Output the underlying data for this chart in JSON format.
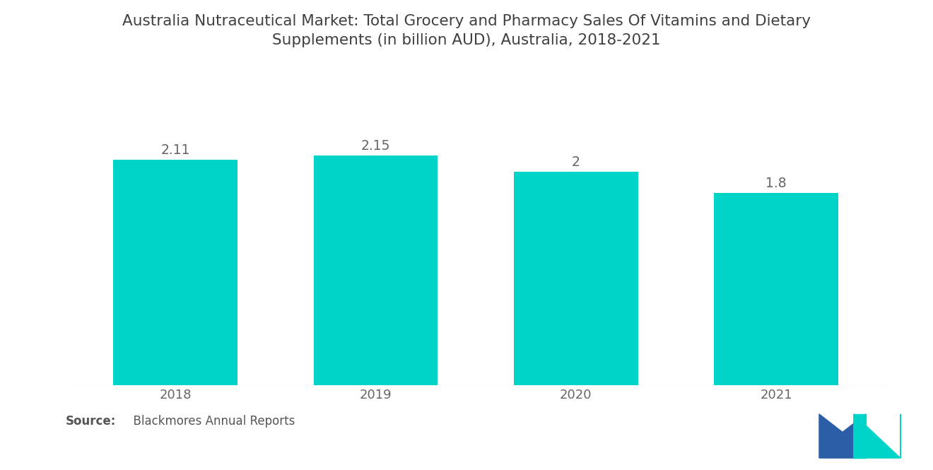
{
  "title_line1": "Australia Nutraceutical Market: Total Grocery and Pharmacy Sales Of Vitamins and Dietary",
  "title_line2": "Supplements (in billion AUD), Australia, 2018-2021",
  "categories": [
    "2018",
    "2019",
    "2020",
    "2021"
  ],
  "values": [
    2.11,
    2.15,
    2.0,
    1.8
  ],
  "bar_color": "#00D4C8",
  "value_labels": [
    "2.11",
    "2.15",
    "2",
    "1.8"
  ],
  "background_color": "#FFFFFF",
  "title_color": "#404040",
  "label_color": "#666666",
  "source_bold": "Source:",
  "source_text": "  Blackmores Annual Reports",
  "ylim": [
    0,
    2.55
  ],
  "bar_width": 0.62,
  "title_fontsize": 15.5,
  "label_fontsize": 13.5,
  "tick_fontsize": 13,
  "source_fontsize": 12,
  "logo_blue": "#2B5EA7",
  "logo_teal": "#00D4C8"
}
